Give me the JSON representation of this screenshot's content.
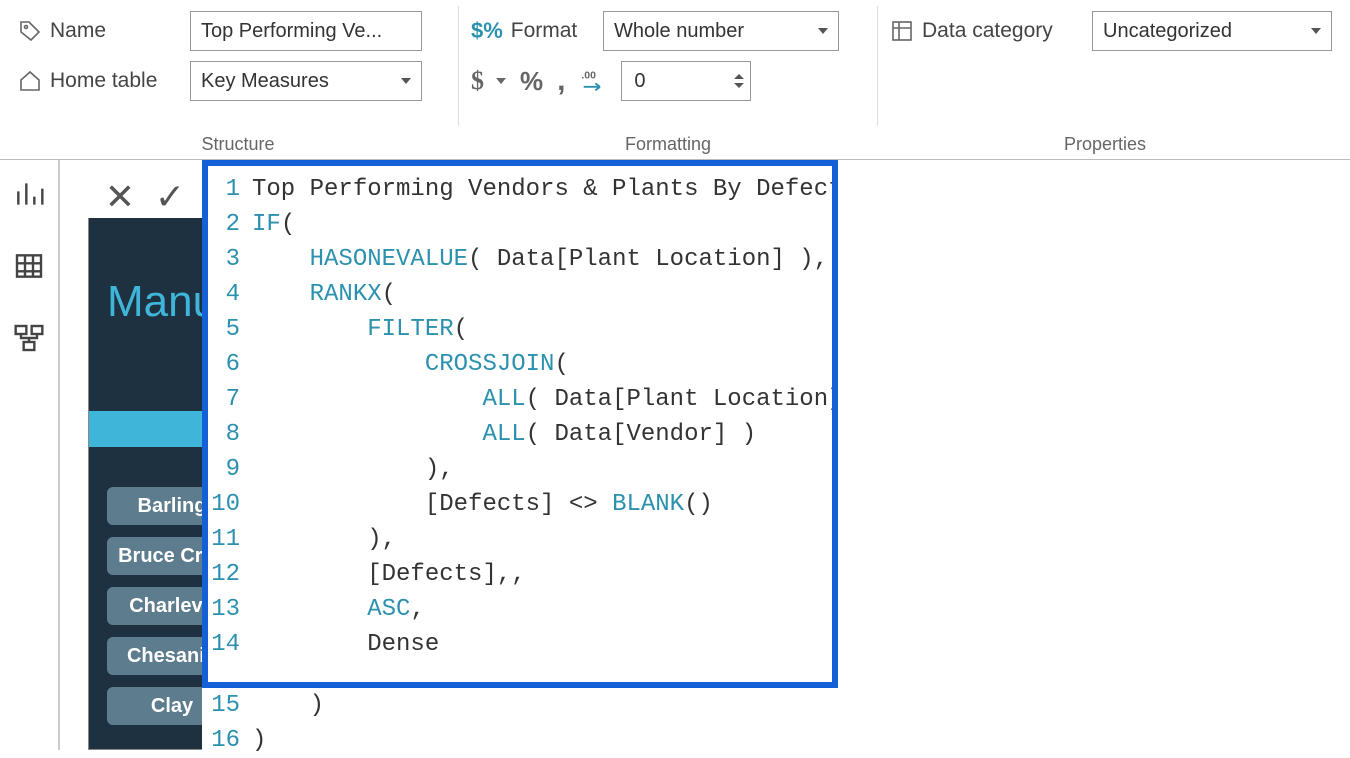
{
  "ribbon": {
    "structure": {
      "group_label": "Structure",
      "name_label": "Name",
      "name_value": "Top Performing Ve...",
      "home_table_label": "Home table",
      "home_table_value": "Key Measures"
    },
    "formatting": {
      "group_label": "Formatting",
      "format_label": "Format",
      "format_value": "Whole number",
      "decimals_value": "0",
      "currency_symbol": "$",
      "percent_symbol": "%",
      "comma_symbol": ",",
      "decimal_icon": ".00"
    },
    "properties": {
      "group_label": "Properties",
      "data_category_label": "Data category",
      "data_category_value": "Uncategorized"
    }
  },
  "views": {
    "report": "report-view",
    "data": "data-view",
    "model": "model-view"
  },
  "report_canvas": {
    "title_partial": "Manu",
    "background_color": "#1d3140",
    "accent_color": "#3fb5d9",
    "slicer_items": [
      "Barling",
      "Bruce Cros",
      "Charlevo",
      "Chesanin",
      "Clay"
    ]
  },
  "formula": {
    "lines": [
      {
        "n": "1",
        "indent": 0,
        "tokens": [
          {
            "t": "ident",
            "v": "Top Performing Vendors & Plants By Defects ="
          }
        ]
      },
      {
        "n": "2",
        "indent": 0,
        "tokens": [
          {
            "t": "fn",
            "v": "IF"
          },
          {
            "t": "txt",
            "v": "("
          }
        ]
      },
      {
        "n": "3",
        "indent": 1,
        "tokens": [
          {
            "t": "fn",
            "v": "HASONEVALUE"
          },
          {
            "t": "txt",
            "v": "( Data[Plant Location] ),"
          }
        ]
      },
      {
        "n": "4",
        "indent": 1,
        "tokens": [
          {
            "t": "fn",
            "v": "RANKX"
          },
          {
            "t": "txt",
            "v": "("
          }
        ]
      },
      {
        "n": "5",
        "indent": 2,
        "tokens": [
          {
            "t": "fn",
            "v": "FILTER"
          },
          {
            "t": "txt",
            "v": "("
          }
        ]
      },
      {
        "n": "6",
        "indent": 3,
        "tokens": [
          {
            "t": "fn",
            "v": "CROSSJOIN"
          },
          {
            "t": "txt",
            "v": "("
          }
        ]
      },
      {
        "n": "7",
        "indent": 4,
        "tokens": [
          {
            "t": "fn",
            "v": "ALL"
          },
          {
            "t": "txt",
            "v": "( Data[Plant Location] ),"
          }
        ]
      },
      {
        "n": "8",
        "indent": 4,
        "tokens": [
          {
            "t": "fn",
            "v": "ALL"
          },
          {
            "t": "txt",
            "v": "( Data[Vendor] )"
          }
        ]
      },
      {
        "n": "9",
        "indent": 3,
        "tokens": [
          {
            "t": "txt",
            "v": "),"
          }
        ]
      },
      {
        "n": "10",
        "indent": 3,
        "tokens": [
          {
            "t": "txt",
            "v": "[Defects] <> "
          },
          {
            "t": "fn",
            "v": "BLANK"
          },
          {
            "t": "txt",
            "v": "()"
          }
        ],
        "cursor_after": 9
      },
      {
        "n": "11",
        "indent": 2,
        "tokens": [
          {
            "t": "txt",
            "v": "),"
          }
        ]
      },
      {
        "n": "12",
        "indent": 2,
        "tokens": [
          {
            "t": "txt",
            "v": "[Defects],,"
          }
        ]
      },
      {
        "n": "13",
        "indent": 2,
        "tokens": [
          {
            "t": "fn",
            "v": "ASC"
          },
          {
            "t": "txt",
            "v": ","
          }
        ]
      },
      {
        "n": "14",
        "indent": 2,
        "tokens": [
          {
            "t": "txt",
            "v": "Dense"
          }
        ]
      }
    ],
    "overflow_lines": [
      {
        "n": "15",
        "indent": 1,
        "tokens": [
          {
            "t": "txt",
            "v": ")"
          }
        ]
      },
      {
        "n": "16",
        "indent": 0,
        "tokens": [
          {
            "t": "txt",
            "v": ")"
          }
        ]
      }
    ],
    "highlight_color": "#1460d6",
    "editor_bg": "#ffffff"
  }
}
